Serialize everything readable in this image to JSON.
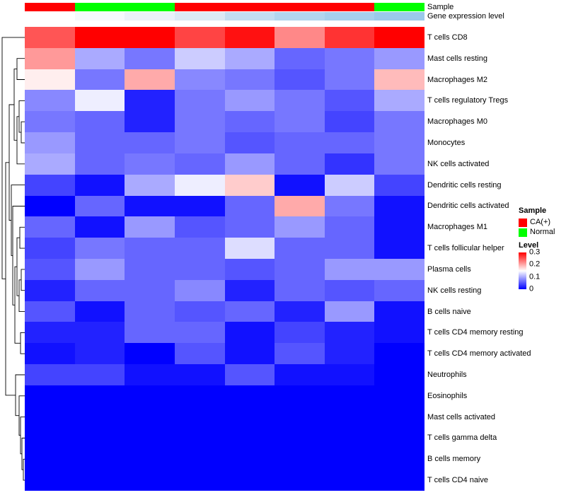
{
  "figure": {
    "annotations": {
      "sample_label": "Sample",
      "expression_label": "Gene expression level",
      "sample_groups": [
        "CA(+)",
        "Normal",
        "Normal",
        "CA(+)",
        "CA(+)",
        "CA(+)",
        "CA(+)",
        "Normal"
      ],
      "expression_colors": [
        "#FFFFFF",
        "#F6F9FC",
        "#EAF1F8",
        "#DCE9F5",
        "#C3DDF1",
        "#B2D5EE",
        "#A6CFEC",
        "#9AC9EA"
      ]
    },
    "legend": {
      "sample_title": "Sample",
      "sample_items": [
        {
          "label": "CA(+)",
          "color": "#FF0000"
        },
        {
          "label": "Normal",
          "color": "#00FF00"
        }
      ],
      "level_title": "Level",
      "level_ticks": [
        "0.3",
        "0.2",
        "0.1",
        "0"
      ]
    }
  },
  "chart_data": {
    "type": "heatmap",
    "title": "",
    "n_columns": 8,
    "column_sample_group": [
      "CA(+)",
      "Normal",
      "Normal",
      "CA(+)",
      "CA(+)",
      "CA(+)",
      "CA(+)",
      "Normal"
    ],
    "rows": [
      "T cells CD8",
      "Mast cells resting",
      "Macrophages M2",
      "T cells regulatory Tregs",
      "Macrophages M0",
      "Monocytes",
      "NK cells activated",
      "Dendritic cells resting",
      "Dendritic cells activated",
      "Macrophages M1",
      "T cells follicular helper",
      "Plasma cells",
      "NK cells resting",
      "B cells naive",
      "T cells CD4 memory resting",
      "T cells CD4 memory activated",
      "Neutrophils",
      "Eosinophils",
      "Mast cells activated",
      "T cells gamma delta",
      "B cells memory",
      "T cells CD4 naive"
    ],
    "values": [
      [
        0.25,
        0.3,
        0.3,
        0.26,
        0.29,
        0.22,
        0.27,
        0.3
      ],
      [
        0.21,
        0.1,
        0.07,
        0.12,
        0.1,
        0.06,
        0.07,
        0.09
      ],
      [
        0.16,
        0.07,
        0.2,
        0.08,
        0.07,
        0.05,
        0.07,
        0.19
      ],
      [
        0.08,
        0.14,
        0.02,
        0.07,
        0.09,
        0.07,
        0.05,
        0.1
      ],
      [
        0.07,
        0.06,
        0.02,
        0.07,
        0.06,
        0.07,
        0.04,
        0.07
      ],
      [
        0.09,
        0.06,
        0.06,
        0.07,
        0.05,
        0.06,
        0.06,
        0.07
      ],
      [
        0.1,
        0.06,
        0.07,
        0.06,
        0.09,
        0.06,
        0.03,
        0.07
      ],
      [
        0.04,
        0.01,
        0.1,
        0.14,
        0.18,
        0.01,
        0.12,
        0.04
      ],
      [
        0.0,
        0.06,
        0.01,
        0.01,
        0.06,
        0.2,
        0.07,
        0.01
      ],
      [
        0.06,
        0.01,
        0.09,
        0.05,
        0.06,
        0.09,
        0.06,
        0.01
      ],
      [
        0.04,
        0.07,
        0.06,
        0.06,
        0.13,
        0.06,
        0.06,
        0.01
      ],
      [
        0.05,
        0.09,
        0.06,
        0.06,
        0.05,
        0.06,
        0.09,
        0.09
      ],
      [
        0.02,
        0.06,
        0.06,
        0.08,
        0.02,
        0.06,
        0.05,
        0.06
      ],
      [
        0.05,
        0.01,
        0.06,
        0.05,
        0.06,
        0.02,
        0.09,
        0.01
      ],
      [
        0.02,
        0.02,
        0.06,
        0.06,
        0.01,
        0.04,
        0.02,
        0.01
      ],
      [
        0.01,
        0.02,
        0.0,
        0.05,
        0.01,
        0.05,
        0.02,
        0.0
      ],
      [
        0.04,
        0.04,
        0.01,
        0.01,
        0.05,
        0.01,
        0.01,
        0.0
      ],
      [
        0.0,
        0.0,
        0.0,
        0.0,
        0.0,
        0.0,
        0.0,
        0.0
      ],
      [
        0.0,
        0.0,
        0.0,
        0.0,
        0.0,
        0.0,
        0.0,
        0.0
      ],
      [
        0.0,
        0.0,
        0.0,
        0.0,
        0.0,
        0.0,
        0.0,
        0.0
      ],
      [
        0.0,
        0.0,
        0.0,
        0.0,
        0.0,
        0.0,
        0.0,
        0.0
      ],
      [
        0.0,
        0.0,
        0.0,
        0.0,
        0.0,
        0.0,
        0.0,
        0.0
      ]
    ],
    "color_scale": {
      "min": 0,
      "max": 0.3,
      "low_color": "#0000FF",
      "mid_color": "#FFFFFF",
      "high_color": "#FF0000"
    },
    "row_dendrogram": true,
    "legend_position": "right",
    "grid": false
  }
}
